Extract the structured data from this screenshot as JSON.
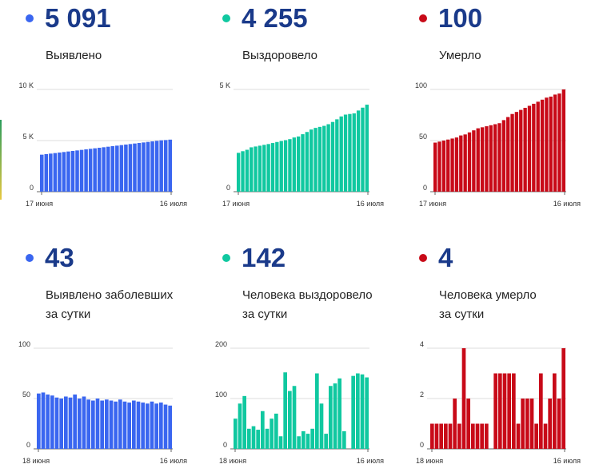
{
  "chart_data": [
    {
      "type": "bar",
      "big_number": "5 091",
      "label_lines": [
        "Выявлено"
      ],
      "color": "#3a66f0",
      "y_ticks": [
        {
          "v": 0,
          "label": "0"
        },
        {
          "v": 5000,
          "label": "5 K"
        },
        {
          "v": 10000,
          "label": "10 K"
        }
      ],
      "ylim": [
        0,
        10000
      ],
      "x_start_label": "17 июня",
      "x_end_label": "16 июля",
      "values": [
        3620,
        3672,
        3724,
        3776,
        3828,
        3880,
        3932,
        3984,
        4036,
        4088,
        4140,
        4192,
        4244,
        4296,
        4348,
        4400,
        4452,
        4504,
        4556,
        4608,
        4660,
        4712,
        4764,
        4816,
        4868,
        4920,
        4972,
        5024,
        5050,
        5091
      ]
    },
    {
      "type": "bar",
      "big_number": "4 255",
      "label_lines": [
        "Выздоровело"
      ],
      "color": "#10c8a0",
      "y_ticks": [
        {
          "v": 0,
          "label": "0"
        },
        {
          "v": 5000,
          "label": "5 K"
        }
      ],
      "ylim": [
        0,
        5000
      ],
      "x_start_label": "17 июня",
      "x_end_label": "16 июля",
      "values": [
        1900,
        1980,
        2050,
        2170,
        2210,
        2250,
        2290,
        2330,
        2380,
        2430,
        2480,
        2520,
        2570,
        2650,
        2700,
        2810,
        2920,
        3040,
        3120,
        3170,
        3220,
        3300,
        3410,
        3540,
        3680,
        3770,
        3800,
        3830,
        3970,
        4110,
        4255
      ]
    },
    {
      "type": "bar",
      "big_number": "100",
      "label_lines": [
        "Умерло"
      ],
      "color": "#c80a18",
      "y_ticks": [
        {
          "v": 0,
          "label": "0"
        },
        {
          "v": 50,
          "label": "50"
        },
        {
          "v": 100,
          "label": "100"
        }
      ],
      "ylim": [
        0,
        100
      ],
      "x_start_label": "17 июня",
      "x_end_label": "16 июля",
      "values": [
        48,
        49,
        50,
        51,
        52,
        53,
        55,
        56,
        58,
        60,
        62,
        63,
        64,
        65,
        66,
        67,
        70,
        73,
        76,
        78,
        80,
        82,
        84,
        86,
        88,
        90,
        92,
        93,
        95,
        96,
        100
      ]
    },
    {
      "type": "bar",
      "big_number": "43",
      "label_lines": [
        "Выявлено заболевших",
        "за сутки"
      ],
      "color": "#3a66f0",
      "y_ticks": [
        {
          "v": 0,
          "label": "0"
        },
        {
          "v": 50,
          "label": "50"
        },
        {
          "v": 100,
          "label": "100"
        }
      ],
      "ylim": [
        0,
        100
      ],
      "x_start_label": "18 июня",
      "x_end_label": "16 июля",
      "values": [
        55,
        56,
        54,
        53,
        51,
        50,
        52,
        51,
        54,
        50,
        52,
        49,
        48,
        50,
        48,
        49,
        48,
        47,
        49,
        47,
        46,
        48,
        47,
        46,
        45,
        47,
        45,
        46,
        44,
        43
      ]
    },
    {
      "type": "bar",
      "big_number": "142",
      "label_lines": [
        "Человека выздоровело",
        "за сутки"
      ],
      "color": "#10c8a0",
      "y_ticks": [
        {
          "v": 0,
          "label": "0"
        },
        {
          "v": 100,
          "label": "100"
        },
        {
          "v": 200,
          "label": "200"
        }
      ],
      "ylim": [
        0,
        200
      ],
      "x_start_label": "18 июня",
      "x_end_label": "16 июля",
      "values": [
        60,
        90,
        105,
        40,
        45,
        38,
        75,
        40,
        60,
        70,
        25,
        152,
        115,
        125,
        25,
        35,
        30,
        40,
        150,
        90,
        30,
        125,
        130,
        140,
        35,
        0,
        145,
        150,
        148,
        142
      ]
    },
    {
      "type": "bar",
      "big_number": "4",
      "label_lines": [
        "Человека умерло",
        "за сутки"
      ],
      "color": "#c80a18",
      "y_ticks": [
        {
          "v": 0,
          "label": "0"
        },
        {
          "v": 2,
          "label": "2"
        },
        {
          "v": 4,
          "label": "4"
        }
      ],
      "ylim": [
        0,
        4
      ],
      "x_start_label": "18 июня",
      "x_end_label": "16 июля",
      "values": [
        1,
        1,
        1,
        1,
        1,
        2,
        1,
        4,
        2,
        1,
        1,
        1,
        1,
        0,
        3,
        3,
        3,
        3,
        3,
        1,
        2,
        2,
        2,
        1,
        3,
        1,
        2,
        3,
        2,
        4
      ]
    }
  ]
}
